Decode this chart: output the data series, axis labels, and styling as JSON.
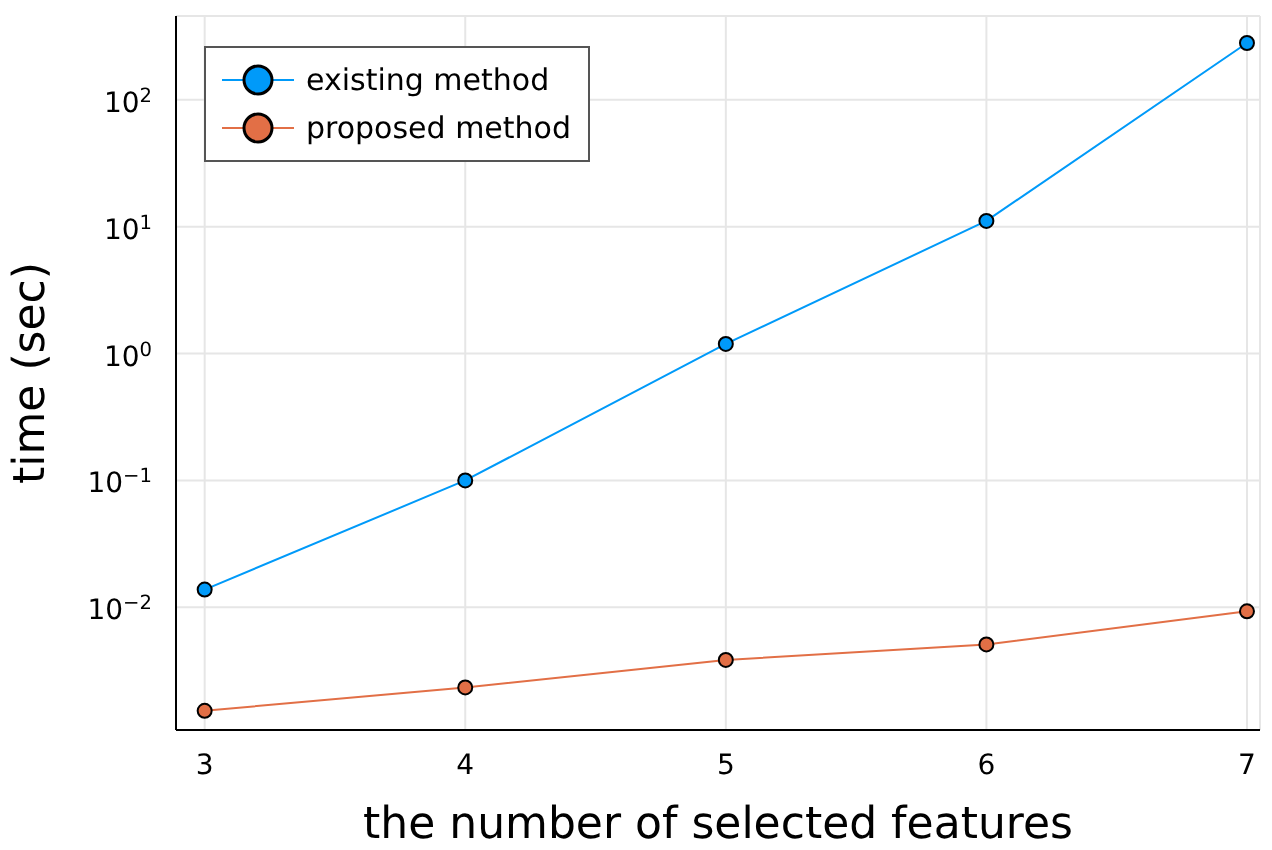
{
  "chart_data": {
    "type": "line",
    "xlabel": "the number of selected features",
    "ylabel": "time (sec)",
    "x": [
      3,
      4,
      5,
      6,
      7
    ],
    "series": [
      {
        "name": "existing method",
        "color": "#009af9",
        "values": [
          0.0138,
          0.1,
          1.19,
          11.1,
          280
        ]
      },
      {
        "name": "proposed method",
        "color": "#e26f46",
        "values": [
          0.00153,
          0.00234,
          0.00385,
          0.0051,
          0.0093
        ]
      }
    ],
    "log": "y",
    "xlim": [
      2.89,
      7.05
    ],
    "xticks": [
      3,
      4,
      5,
      6,
      7
    ],
    "ylim": [
      0.00108,
      457
    ],
    "yticks": [
      {
        "value": 0.01,
        "label": "10$^{−2}$"
      },
      {
        "value": 0.1,
        "label": "10$^{−1}$"
      },
      {
        "value": 1,
        "label": "10$^{0}$"
      },
      {
        "value": 10,
        "label": "10$^{1}$"
      },
      {
        "value": 100,
        "label": "10$^{2}$"
      }
    ],
    "grid": true,
    "legend": "top left",
    "marker": "circle",
    "line_style": "solid"
  }
}
